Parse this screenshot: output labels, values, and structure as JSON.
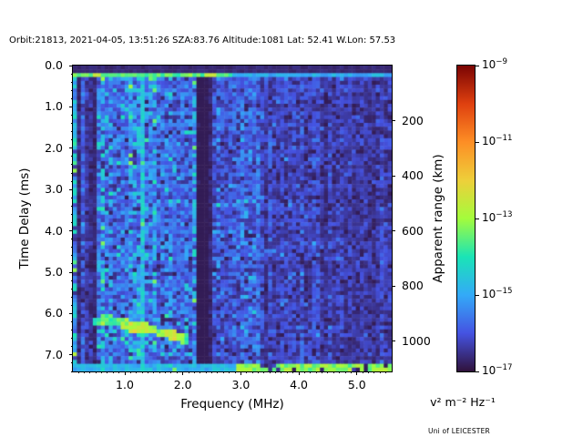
{
  "figure": {
    "title": "Orbit:21813, 2021-04-05, 13:51:26 SZA:83.76 Altitude:1081 Lat: 52.41 W.Lon: 57.53",
    "credit": "Uni of LEICESTER",
    "observation": {
      "orbit": "21813",
      "date": "2021-04-05",
      "time": "13:51:26",
      "sza": "83.76",
      "altitude": "1081",
      "lat": "52.41",
      "w_lon": "57.53"
    }
  },
  "chart_data": {
    "type": "heatmap",
    "title": "Orbit:21813, 2021-04-05, 13:51:26 SZA:83.76 Altitude:1081 Lat: 52.41 W.Lon: 57.53",
    "xlabel": "Frequency (MHz)",
    "ylabel": "Time Delay (ms)",
    "y2label": "Apparent range (km)",
    "x_range": [
      0.105,
      5.6
    ],
    "y_range": [
      0,
      7.4
    ],
    "x_major_ticks": [
      1.0,
      2.0,
      3.0,
      4.0,
      5.0
    ],
    "x_tick_labels": [
      "1.0",
      "2.0",
      "3.0",
      "4.0",
      "5.0"
    ],
    "x_minor_step": 0.1,
    "y_major_ticks": [
      0,
      1,
      2,
      3,
      4,
      5,
      6,
      7
    ],
    "y_tick_labels": [
      "0.0",
      "1.0",
      "2.0",
      "3.0",
      "4.0",
      "5.0",
      "6.0",
      "7.0"
    ],
    "y_minor_step": 0.2,
    "y2_ticks_km": [
      200,
      400,
      600,
      800,
      1000
    ],
    "y2_tick_labels": [
      "200",
      "400",
      "600",
      "800",
      "1000"
    ],
    "km_per_ms": 150,
    "grid_lines": false,
    "colorbar": {
      "scale": "log",
      "unit_label": "v² m⁻² Hz⁻¹",
      "vmax_exponent": -9,
      "vmin_exponent": -17,
      "tick_exponents": [
        -9,
        -11,
        -13,
        -15,
        -17
      ],
      "colormap": "turbo",
      "stops": [
        [
          0.0,
          "#30123B"
        ],
        [
          0.125,
          "#4553E2"
        ],
        [
          0.25,
          "#33AAF8"
        ],
        [
          0.375,
          "#1AE4B6"
        ],
        [
          0.5,
          "#A4FC3C"
        ],
        [
          0.625,
          "#EECF3A"
        ],
        [
          0.75,
          "#FD8E25"
        ],
        [
          0.875,
          "#DF400F"
        ],
        [
          1.0,
          "#7A0403"
        ]
      ]
    },
    "grid": {
      "cols": 80,
      "rows": 80,
      "seed": 21813
    },
    "features": {
      "top_dark_rows": 2,
      "pulse": {
        "delay_ms": 0.2,
        "f_split": 2.88,
        "t_left": 0.38,
        "t_right": 0.22,
        "bright_spots": [
          [
            0.42,
            0.56
          ],
          [
            2.38,
            2.56
          ]
        ]
      },
      "regions": [
        [
          0.65,
          0.16
        ],
        [
          2.26,
          0.175
        ],
        [
          2.5,
          0.05
        ],
        [
          3.35,
          0.13
        ],
        [
          4.35,
          0.1
        ],
        [
          9.0,
          0.085
        ]
      ],
      "stripe_fmax": 0.7,
      "dark_columns": [
        [
          0.205,
          0.45
        ],
        [
          0.26,
          0.6
        ],
        [
          0.33,
          0.35
        ],
        [
          0.4,
          0.5
        ],
        [
          0.47,
          0.55
        ],
        [
          2.3,
          0.22
        ],
        [
          2.37,
          0.22
        ],
        [
          2.44,
          0.35
        ]
      ],
      "bright_column": {
        "freq": 1.31,
        "t": 0.28
      },
      "echo_trace": [
        [
          0.52,
          6.18,
          0.4
        ],
        [
          0.62,
          6.15,
          0.42
        ],
        [
          0.72,
          6.14,
          0.42
        ],
        [
          0.85,
          6.18,
          0.44
        ],
        [
          0.98,
          6.26,
          0.5
        ],
        [
          1.1,
          6.32,
          0.54
        ],
        [
          1.22,
          6.34,
          0.55
        ],
        [
          1.34,
          6.35,
          0.54
        ],
        [
          1.46,
          6.38,
          0.5
        ],
        [
          1.58,
          6.45,
          0.48
        ],
        [
          1.7,
          6.5,
          0.52
        ],
        [
          1.82,
          6.53,
          0.56
        ],
        [
          1.94,
          6.57,
          0.5
        ],
        [
          2.02,
          6.6,
          0.42
        ]
      ],
      "echo_scatter": {
        "f": [
          0.55,
          1.5
        ],
        "d": [
          6.4,
          7.05
        ],
        "prob": 0.16,
        "t": 0.3
      },
      "bottom_strip": {
        "f_start": 2.95,
        "t": 0.4,
        "gap_prob": 0.15,
        "left_boost_t": 0.22
      }
    }
  }
}
